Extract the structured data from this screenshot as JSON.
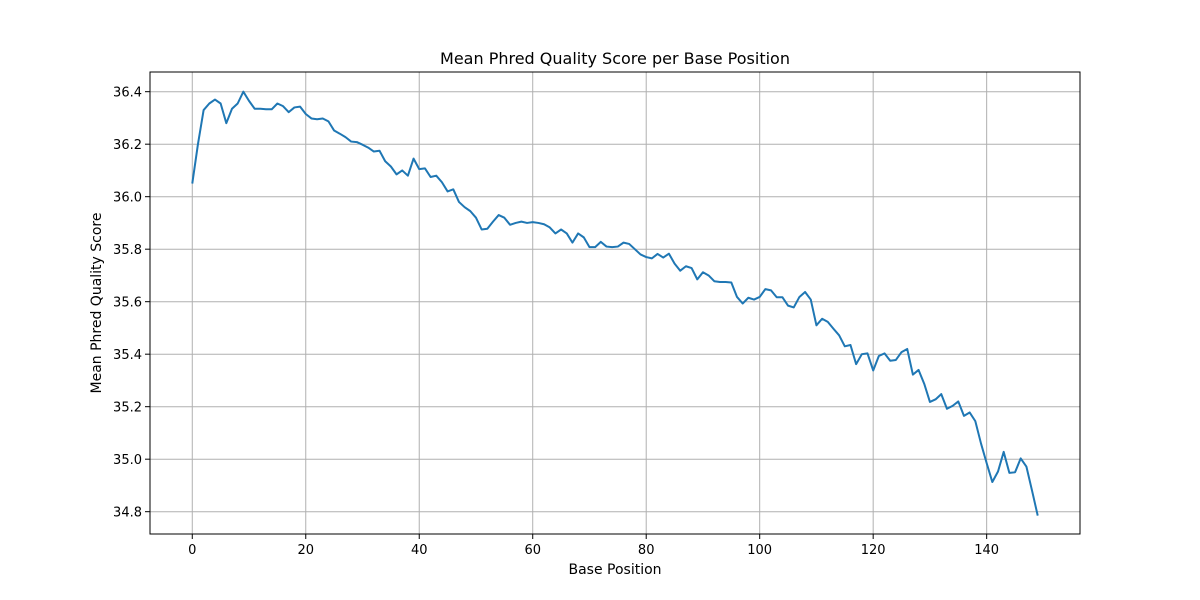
{
  "chart_data": {
    "type": "line",
    "title": "Mean Phred Quality Score per Base Position",
    "xlabel": "Base Position",
    "ylabel": "Mean Phred Quality Score",
    "xlim": [
      -7.45,
      156.45
    ],
    "ylim": [
      34.715,
      36.475
    ],
    "x_ticks": [
      0,
      20,
      40,
      60,
      80,
      100,
      120,
      140
    ],
    "y_ticks": [
      34.8,
      35.0,
      35.2,
      35.4,
      35.6,
      35.8,
      36.0,
      36.2,
      36.4
    ],
    "y_tick_labels": [
      "34.8",
      "35.0",
      "35.2",
      "35.4",
      "35.6",
      "35.8",
      "36.0",
      "36.2",
      "36.4"
    ],
    "grid": true,
    "series": [
      {
        "color": "#1f77b4",
        "x_start": 0,
        "x_step": 1,
        "values": [
          36.05,
          36.2,
          36.33,
          36.355,
          36.37,
          36.355,
          36.28,
          36.335,
          36.355,
          36.4,
          36.365,
          36.335,
          36.335,
          36.333,
          36.333,
          36.355,
          36.345,
          36.322,
          36.34,
          36.343,
          36.315,
          36.298,
          36.295,
          36.298,
          36.287,
          36.252,
          36.24,
          36.227,
          36.21,
          36.208,
          36.198,
          36.187,
          36.172,
          36.175,
          36.135,
          36.115,
          36.085,
          36.1,
          36.08,
          36.145,
          36.105,
          36.108,
          36.075,
          36.08,
          36.055,
          36.02,
          36.028,
          35.98,
          35.96,
          35.945,
          35.92,
          35.875,
          35.878,
          35.905,
          35.93,
          35.92,
          35.893,
          35.9,
          35.905,
          35.9,
          35.903,
          35.9,
          35.895,
          35.883,
          35.86,
          35.875,
          35.86,
          35.825,
          35.86,
          35.845,
          35.808,
          35.808,
          35.828,
          35.81,
          35.808,
          35.81,
          35.825,
          35.82,
          35.8,
          35.78,
          35.77,
          35.765,
          35.782,
          35.768,
          35.783,
          35.745,
          35.718,
          35.735,
          35.728,
          35.685,
          35.712,
          35.7,
          35.678,
          35.675,
          35.675,
          35.673,
          35.618,
          35.593,
          35.615,
          35.608,
          35.618,
          35.648,
          35.643,
          35.617,
          35.617,
          35.585,
          35.578,
          35.618,
          35.637,
          35.608,
          35.51,
          35.535,
          35.523,
          35.497,
          35.472,
          35.43,
          35.435,
          35.362,
          35.4,
          35.403,
          35.338,
          35.393,
          35.403,
          35.375,
          35.378,
          35.408,
          35.42,
          35.322,
          35.34,
          35.287,
          35.218,
          35.228,
          35.248,
          35.192,
          35.203,
          35.22,
          35.165,
          35.178,
          35.145,
          35.06,
          34.985,
          34.913,
          34.953,
          35.028,
          34.948,
          34.95,
          35.003,
          34.972,
          34.88,
          34.785
        ]
      }
    ]
  }
}
